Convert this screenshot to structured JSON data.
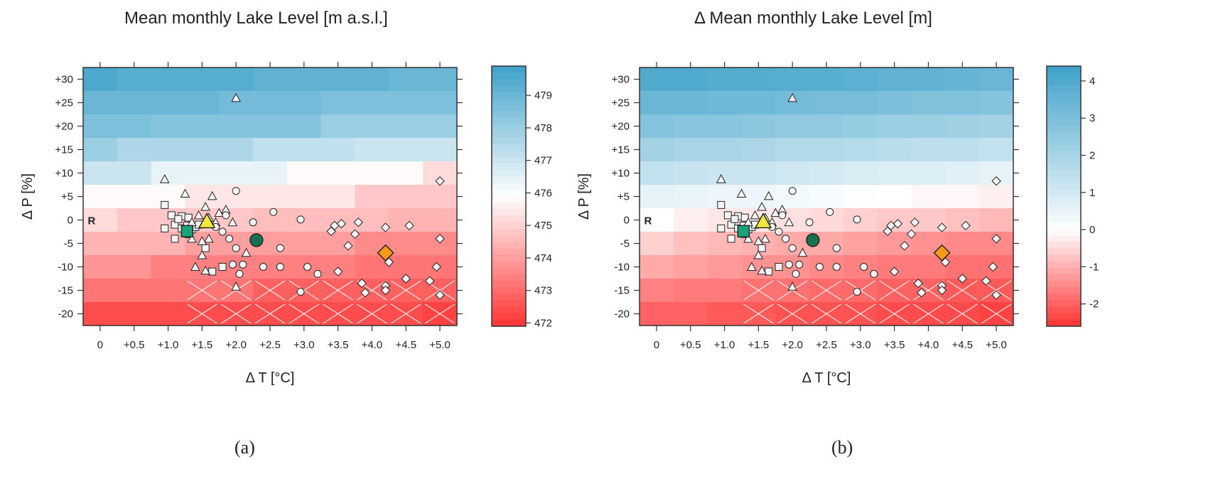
{
  "chart_data": [
    {
      "type": "heatmap",
      "title": "Mean monthly Lake Level [m a.s.l.]",
      "xlabel": "Δ T [°C]",
      "ylabel": "Δ P [%]",
      "x_ticks": [
        "0",
        "+0.5",
        "+1.0",
        "+1.5",
        "+2.0",
        "+2.5",
        "+3.0",
        "+3.5",
        "+4.0",
        "+4.5",
        "+5.0"
      ],
      "y_ticks": [
        "+30",
        "+25",
        "+20",
        "+15",
        "+10",
        "+5",
        "0",
        "-5",
        "-10",
        "-15",
        "-20"
      ],
      "xlim": [
        -0.25,
        5.25
      ],
      "ylim": [
        -22.5,
        32.5
      ],
      "colorbar": {
        "ticks": [
          "479",
          "478",
          "477",
          "476",
          "475",
          "474",
          "473",
          "472"
        ],
        "range": [
          471.9,
          479.9
        ]
      },
      "grid_x": [
        0,
        0.5,
        1.0,
        1.5,
        2.0,
        2.5,
        3.0,
        3.5,
        4.0,
        4.5,
        5.0
      ],
      "grid_y": [
        30,
        25,
        20,
        15,
        10,
        5,
        0,
        -5,
        -10,
        -15,
        -20
      ],
      "values": [
        [
          479.6,
          479.4,
          479.4,
          479.4,
          479.4,
          479.2,
          479.2,
          479.2,
          479.2,
          479.0,
          479.0
        ],
        [
          479.0,
          479.0,
          479.0,
          479.0,
          478.8,
          478.8,
          478.8,
          478.6,
          478.6,
          478.6,
          478.6
        ],
        [
          478.6,
          478.6,
          478.4,
          478.4,
          478.4,
          478.4,
          478.4,
          478.0,
          478.0,
          478.0,
          478.0
        ],
        [
          478.0,
          477.6,
          477.6,
          477.6,
          477.6,
          477.2,
          477.2,
          477.2,
          477.0,
          477.0,
          477.0
        ],
        [
          477.0,
          477.0,
          476.4,
          476.4,
          476.4,
          476.4,
          475.8,
          475.8,
          475.8,
          475.8,
          475.2
        ],
        [
          475.8,
          475.8,
          475.8,
          475.4,
          475.4,
          475.4,
          475.4,
          475.4,
          474.8,
          474.8,
          474.8
        ],
        [
          475.2,
          474.8,
          474.8,
          474.8,
          474.8,
          474.6,
          474.6,
          474.6,
          474.6,
          474.4,
          474.4
        ],
        [
          474.4,
          474.4,
          474.4,
          474.0,
          474.0,
          474.0,
          474.0,
          474.0,
          473.6,
          473.6,
          473.6
        ],
        [
          473.8,
          473.8,
          473.4,
          473.4,
          473.4,
          473.4,
          473.4,
          473.4,
          473.2,
          473.2,
          473.2
        ],
        [
          473.2,
          473.2,
          473.2,
          473.2,
          473.2,
          472.8,
          472.8,
          472.8,
          472.8,
          472.8,
          472.8
        ],
        [
          472.4,
          472.4,
          472.4,
          472.4,
          472.4,
          472.4,
          472.4,
          472.4,
          472.4,
          472.4,
          472.2
        ]
      ],
      "annotations": [
        "R"
      ],
      "panel_label": "(a)"
    },
    {
      "type": "heatmap",
      "title": "Δ Mean monthly Lake Level [m]",
      "xlabel": "Δ T [°C]",
      "ylabel": "Δ P [%]",
      "x_ticks": [
        "0",
        "+0.5",
        "+1.0",
        "+1.5",
        "+2.0",
        "+2.5",
        "+3.0",
        "+3.5",
        "+4.0",
        "+4.5",
        "+5.0"
      ],
      "y_ticks": [
        "+30",
        "+25",
        "+20",
        "+15",
        "+10",
        "+5",
        "0",
        "-5",
        "-10",
        "-15",
        "-20"
      ],
      "xlim": [
        -0.25,
        5.25
      ],
      "ylim": [
        -22.5,
        32.5
      ],
      "colorbar": {
        "ticks": [
          "4",
          "3",
          "2",
          "1",
          "0",
          "-1",
          "-2"
        ],
        "range": [
          -2.6,
          4.4
        ]
      },
      "grid_x": [
        0,
        0.5,
        1.0,
        1.5,
        2.0,
        2.5,
        3.0,
        3.5,
        4.0,
        4.5,
        5.0
      ],
      "grid_y": [
        30,
        25,
        20,
        15,
        10,
        5,
        0,
        -5,
        -10,
        -15,
        -20
      ],
      "values": [
        [
          4.0,
          4.0,
          3.9,
          3.9,
          3.8,
          3.8,
          3.7,
          3.6,
          3.6,
          3.5,
          3.4
        ],
        [
          3.4,
          3.4,
          3.3,
          3.3,
          3.2,
          3.1,
          3.1,
          3.0,
          2.9,
          2.9,
          2.8
        ],
        [
          2.8,
          2.7,
          2.7,
          2.6,
          2.5,
          2.5,
          2.4,
          2.3,
          2.3,
          2.2,
          2.1
        ],
        [
          2.1,
          2.0,
          2.0,
          1.9,
          1.8,
          1.8,
          1.7,
          1.6,
          1.5,
          1.5,
          1.4
        ],
        [
          1.4,
          1.3,
          1.2,
          1.2,
          1.1,
          1.0,
          0.9,
          0.8,
          0.8,
          0.7,
          0.6
        ],
        [
          0.6,
          0.5,
          0.4,
          0.4,
          0.3,
          0.2,
          0.1,
          0.0,
          -0.1,
          -0.1,
          -0.2
        ],
        [
          0.0,
          -0.2,
          -0.3,
          -0.3,
          -0.4,
          -0.5,
          -0.6,
          -0.7,
          -0.7,
          -0.8,
          -0.9
        ],
        [
          -0.6,
          -0.8,
          -0.9,
          -1.0,
          -1.1,
          -1.1,
          -1.2,
          -1.3,
          -1.4,
          -1.5,
          -1.5
        ],
        [
          -1.1,
          -1.2,
          -1.3,
          -1.4,
          -1.4,
          -1.5,
          -1.6,
          -1.7,
          -1.7,
          -1.8,
          -1.8
        ],
        [
          -1.6,
          -1.7,
          -1.7,
          -1.8,
          -1.8,
          -1.9,
          -1.9,
          -2.0,
          -2.0,
          -2.1,
          -2.1
        ],
        [
          -2.0,
          -2.0,
          -2.1,
          -2.1,
          -2.2,
          -2.2,
          -2.2,
          -2.3,
          -2.3,
          -2.3,
          -2.4
        ]
      ],
      "annotations": [
        "R"
      ],
      "panel_label": "(b)"
    }
  ],
  "points": {
    "squares": [
      [
        0.95,
        3.2
      ],
      [
        1.05,
        1.0
      ],
      [
        1.1,
        -1.0
      ],
      [
        1.2,
        0.8
      ],
      [
        1.25,
        -2.5
      ],
      [
        1.3,
        0.5
      ],
      [
        1.35,
        -2.0
      ],
      [
        1.4,
        -1.5
      ],
      [
        1.2,
        -1.8
      ],
      [
        1.1,
        -4.0
      ],
      [
        1.3,
        -3.0
      ],
      [
        1.45,
        -1.0
      ],
      [
        0.95,
        -1.8
      ],
      [
        1.55,
        -6.0
      ],
      [
        1.8,
        -10.0
      ],
      [
        1.65,
        -11.0
      ],
      [
        1.15,
        0.2
      ],
      [
        1.28,
        -1.2
      ]
    ],
    "triangles": [
      [
        2.0,
        26.0
      ],
      [
        0.95,
        8.7
      ],
      [
        1.25,
        5.6
      ],
      [
        1.65,
        5.1
      ],
      [
        1.55,
        2.8
      ],
      [
        1.45,
        1.0
      ],
      [
        1.35,
        -0.5
      ],
      [
        1.6,
        0.5
      ],
      [
        1.75,
        1.5
      ],
      [
        1.85,
        2.2
      ],
      [
        1.7,
        -0.5
      ],
      [
        1.6,
        -4.0
      ],
      [
        1.5,
        -4.5
      ],
      [
        1.5,
        -7.5
      ],
      [
        1.4,
        -10.0
      ],
      [
        1.55,
        -10.8
      ],
      [
        2.0,
        -14.2
      ],
      [
        2.15,
        -7.0
      ],
      [
        1.95,
        -0.5
      ],
      [
        1.35,
        -4.0
      ]
    ],
    "circles": [
      [
        2.0,
        6.2
      ],
      [
        2.25,
        -0.5
      ],
      [
        2.55,
        1.7
      ],
      [
        2.95,
        0.1
      ],
      [
        1.9,
        -4.0
      ],
      [
        2.0,
        -6.0
      ],
      [
        2.1,
        -9.5
      ],
      [
        2.4,
        -10.0
      ],
      [
        2.65,
        -6.0
      ],
      [
        2.65,
        -10.0
      ],
      [
        3.05,
        -10.0
      ],
      [
        3.2,
        -11.5
      ],
      [
        2.95,
        -15.3
      ],
      [
        2.05,
        -11.5
      ],
      [
        1.95,
        -9.5
      ],
      [
        1.85,
        1.0
      ],
      [
        1.8,
        -2.5
      ],
      [
        1.7,
        -1.5
      ]
    ],
    "diamonds": [
      [
        5.0,
        8.3
      ],
      [
        3.45,
        -1.2
      ],
      [
        3.55,
        -0.8
      ],
      [
        3.4,
        -2.4
      ],
      [
        3.8,
        -0.5
      ],
      [
        4.2,
        -1.6
      ],
      [
        4.55,
        -1.2
      ],
      [
        3.75,
        -3.0
      ],
      [
        3.65,
        -5.5
      ],
      [
        4.2,
        -7.5
      ],
      [
        4.25,
        -9.0
      ],
      [
        5.0,
        -4.0
      ],
      [
        3.5,
        -11.0
      ],
      [
        3.85,
        -13.5
      ],
      [
        3.9,
        -15.5
      ],
      [
        4.2,
        -14.0
      ],
      [
        4.5,
        -12.5
      ],
      [
        4.85,
        -13.0
      ],
      [
        4.95,
        -10.0
      ],
      [
        5.0,
        -16.0
      ],
      [
        4.2,
        -15.0
      ]
    ],
    "highlight_square": [
      1.28,
      -2.4
    ],
    "highlight_triangle": [
      1.57,
      -0.3
    ],
    "highlight_circle": [
      2.3,
      -4.3
    ],
    "highlight_diamond": [
      4.2,
      -7.0
    ],
    "reference": [
      0,
      0
    ]
  },
  "hatch_x": [
    1.5,
    2.0,
    2.5,
    3.0,
    3.5,
    4.0,
    4.5,
    5.0
  ],
  "hatch_y": [
    -15,
    -20
  ],
  "colors": {
    "blue_high": "#3ea1c9",
    "white_mid": "#ffffff",
    "red_low": "#ff3333",
    "highlight_square": "#1aa37a",
    "highlight_triangle": "#f2ea3a",
    "highlight_circle": "#16714e",
    "highlight_diamond": "#f59a1a",
    "marker_fill": "#f4f4f4",
    "frame": "#333333"
  }
}
